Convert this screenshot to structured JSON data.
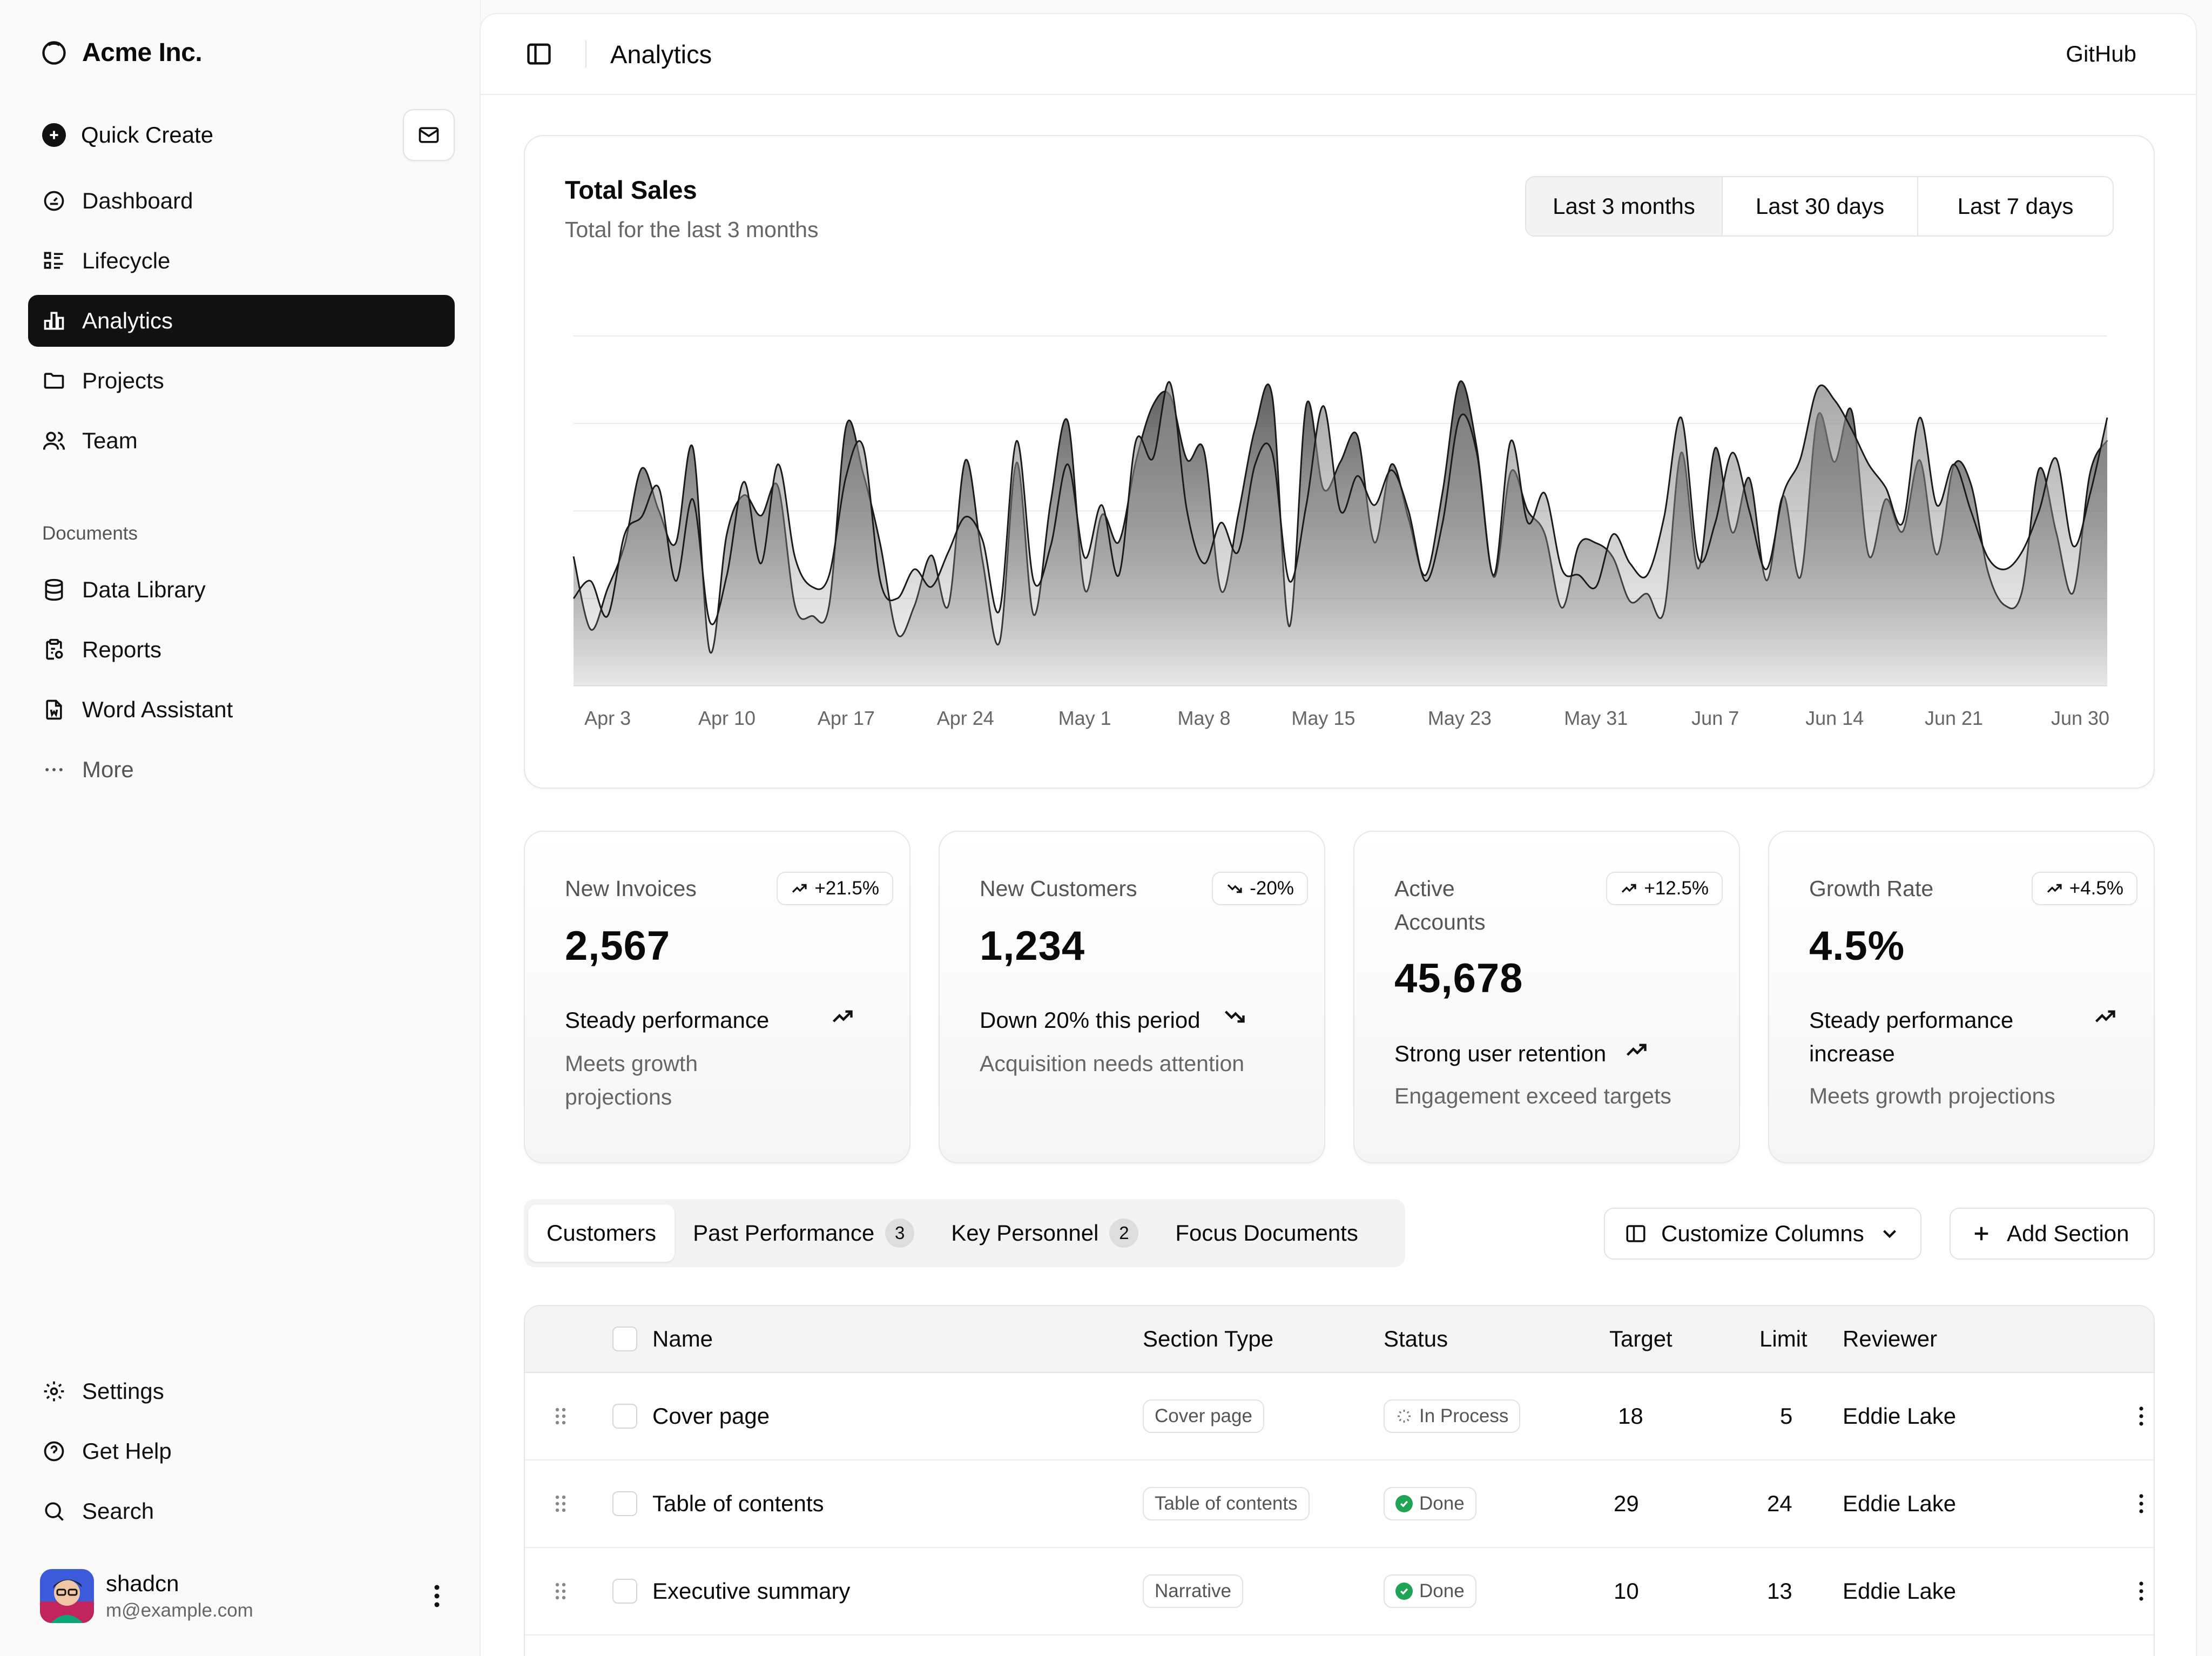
{
  "brand": {
    "name": "Acme Inc."
  },
  "sidebar": {
    "quick_create": "Quick Create",
    "nav": [
      {
        "label": "Dashboard",
        "icon": "gauge-icon"
      },
      {
        "label": "Lifecycle",
        "icon": "list-details-icon"
      },
      {
        "label": "Analytics",
        "icon": "chart-bar-icon",
        "active": true
      },
      {
        "label": "Projects",
        "icon": "folder-icon"
      },
      {
        "label": "Team",
        "icon": "users-icon"
      }
    ],
    "documents_title": "Documents",
    "documents": [
      {
        "label": "Data Library",
        "icon": "database-icon"
      },
      {
        "label": "Reports",
        "icon": "report-icon"
      },
      {
        "label": "Word Assistant",
        "icon": "file-word-icon"
      },
      {
        "label": "More",
        "icon": "dots-icon"
      }
    ],
    "footer": [
      {
        "label": "Settings",
        "icon": "settings-icon"
      },
      {
        "label": "Get Help",
        "icon": "help-icon"
      },
      {
        "label": "Search",
        "icon": "search-icon"
      }
    ],
    "user": {
      "name": "shadcn",
      "email": "m@example.com"
    }
  },
  "header": {
    "title": "Analytics",
    "github": "GitHub"
  },
  "sales": {
    "title": "Total Sales",
    "subtitle": "Total for the last 3 months",
    "ranges": [
      "Last 3 months",
      "Last 30 days",
      "Last 7 days"
    ]
  },
  "chart_data": {
    "type": "area",
    "title": "Total Sales",
    "subtitle": "Total for the last 3 months",
    "x_tick_labels": [
      "Apr 3",
      "Apr 10",
      "Apr 17",
      "Apr 24",
      "May 1",
      "May 8",
      "May 15",
      "May 23",
      "May 31",
      "Jun 7",
      "Jun 14",
      "Jun 21",
      "Jun 30"
    ],
    "x": [
      "Apr 1",
      "Apr 2",
      "Apr 3",
      "Apr 4",
      "Apr 5",
      "Apr 6",
      "Apr 7",
      "Apr 8",
      "Apr 9",
      "Apr 10",
      "Apr 11",
      "Apr 12",
      "Apr 13",
      "Apr 14",
      "Apr 15",
      "Apr 16",
      "Apr 17",
      "Apr 18",
      "Apr 19",
      "Apr 20",
      "Apr 21",
      "Apr 22",
      "Apr 23",
      "Apr 24",
      "Apr 25",
      "Apr 26",
      "Apr 27",
      "Apr 28",
      "Apr 29",
      "Apr 30",
      "May 1",
      "May 2",
      "May 3",
      "May 4",
      "May 5",
      "May 6",
      "May 7",
      "May 8",
      "May 9",
      "May 10",
      "May 11",
      "May 12",
      "May 13",
      "May 14",
      "May 15",
      "May 16",
      "May 17",
      "May 18",
      "May 19",
      "May 20",
      "May 21",
      "May 22",
      "May 23",
      "May 24",
      "May 25",
      "May 26",
      "May 27",
      "May 28",
      "May 29",
      "May 30",
      "May 31",
      "Jun 1",
      "Jun 2",
      "Jun 3",
      "Jun 4",
      "Jun 5",
      "Jun 6",
      "Jun 7",
      "Jun 8",
      "Jun 9",
      "Jun 10",
      "Jun 11",
      "Jun 12",
      "Jun 13",
      "Jun 14",
      "Jun 15",
      "Jun 16",
      "Jun 17",
      "Jun 18",
      "Jun 19",
      "Jun 20",
      "Jun 21",
      "Jun 22",
      "Jun 23",
      "Jun 24",
      "Jun 25",
      "Jun 26",
      "Jun 27",
      "Jun 28",
      "Jun 29",
      "Jun 30"
    ],
    "series": [
      {
        "values": [
          222,
          97,
          167,
          242,
          373,
          301,
          245,
          409,
          59,
          261,
          327,
          292,
          342,
          137,
          120,
          138,
          446,
          364,
          243,
          89,
          137,
          224,
          138,
          387,
          215,
          75,
          383,
          122,
          315,
          454,
          165,
          293,
          247,
          385,
          481,
          498,
          388,
          403,
          163,
          293,
          442,
          497,
          102,
          482,
          338,
          384,
          429,
          246,
          380,
          287,
          190,
          333,
          521,
          409,
          187,
          367,
          300,
          260,
          134,
          242,
          245,
          220,
          145,
          158,
          129,
          400,
          201,
          408,
          263,
          356,
          181,
          326,
          187,
          462,
          384,
          472,
          224,
          320,
          265,
          387,
          225,
          378,
          346,
          196,
          138,
          162,
          372,
          264,
          160,
          366,
          421
        ]
      },
      {
        "values": [
          150,
          180,
          120,
          260,
          290,
          340,
          180,
          320,
          110,
          190,
          350,
          210,
          380,
          220,
          170,
          190,
          360,
          410,
          180,
          150,
          200,
          170,
          230,
          290,
          250,
          130,
          420,
          180,
          240,
          380,
          220,
          310,
          190,
          420,
          390,
          520,
          300,
          210,
          280,
          230,
          380,
          400,
          180,
          310,
          480,
          300,
          360,
          310,
          370,
          300,
          180,
          280,
          460,
          400,
          190,
          420,
          280,
          330,
          200,
          190,
          170,
          260,
          210,
          190,
          290,
          460,
          220,
          280,
          400,
          300,
          200,
          330,
          390,
          510,
          490,
          440,
          380,
          340,
          280,
          460,
          310,
          380,
          300,
          220,
          200,
          230,
          300,
          390,
          240,
          330,
          460
        ]
      }
    ]
  },
  "stats": [
    {
      "title": "New Invoices",
      "badge": "+21.5%",
      "trend": "up",
      "value": "2,567",
      "foot": "Steady performance",
      "desc": "Meets growth projections"
    },
    {
      "title": "New Customers",
      "badge": "-20%",
      "trend": "down",
      "value": "1,234",
      "foot": "Down 20% this period",
      "desc": "Acquisition needs attention"
    },
    {
      "title": "Active Accounts",
      "badge": "+12.5%",
      "trend": "up",
      "value": "45,678",
      "foot": "Strong user retention",
      "desc": "Engagement exceed targets"
    },
    {
      "title": "Growth Rate",
      "badge": "+4.5%",
      "trend": "up",
      "value": "4.5%",
      "foot": "Steady performance increase",
      "desc": "Meets growth projections"
    }
  ],
  "tabs": [
    {
      "label": "Customers",
      "active": true
    },
    {
      "label": "Past Performance",
      "count": "3"
    },
    {
      "label": "Key Personnel",
      "count": "2"
    },
    {
      "label": "Focus Documents"
    }
  ],
  "actions": {
    "customize": "Customize Columns",
    "add_section": "Add Section"
  },
  "table": {
    "headers": {
      "name": "Name",
      "type": "Section Type",
      "status": "Status",
      "target": "Target",
      "limit": "Limit",
      "reviewer": "Reviewer"
    },
    "rows": [
      {
        "name": "Cover page",
        "type": "Cover page",
        "status": "In Process",
        "target": "18",
        "limit": "5",
        "reviewer": "Eddie Lake"
      },
      {
        "name": "Table of contents",
        "type": "Table of contents",
        "status": "Done",
        "target": "29",
        "limit": "24",
        "reviewer": "Eddie Lake"
      },
      {
        "name": "Executive summary",
        "type": "Narrative",
        "status": "Done",
        "target": "10",
        "limit": "13",
        "reviewer": "Eddie Lake"
      }
    ]
  }
}
